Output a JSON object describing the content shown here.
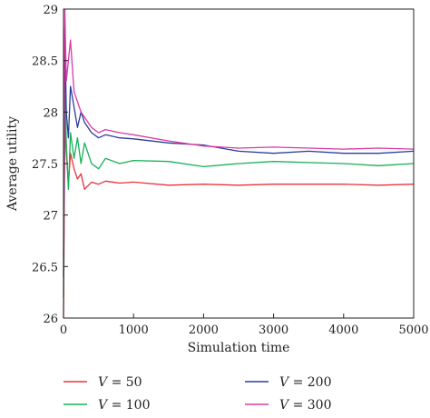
{
  "chart_data": {
    "type": "line",
    "xlabel": "Simulation time",
    "ylabel": "Average utility",
    "xlim": [
      0,
      5000
    ],
    "ylim": [
      26,
      29
    ],
    "xticks": [
      0,
      1000,
      2000,
      3000,
      4000,
      5000
    ],
    "yticks": [
      26,
      26.5,
      27,
      27.5,
      28,
      28.5,
      29
    ],
    "xtick_labels": [
      "0",
      "1000",
      "2000",
      "3000",
      "4000",
      "5000"
    ],
    "ytick_labels": [
      "26",
      "26.5",
      "27",
      "27.5",
      "28",
      "28.5",
      "29"
    ],
    "grid": false,
    "legend_placement": "below",
    "series": [
      {
        "var": "V",
        "eq": " = 50",
        "color": "#e8333b",
        "x": [
          0,
          20,
          40,
          70,
          100,
          150,
          200,
          250,
          300,
          400,
          500,
          600,
          800,
          1000,
          1500,
          2000,
          2500,
          3000,
          3500,
          4000,
          4500,
          5000
        ],
        "y": [
          26.0,
          27.9,
          27.6,
          27.3,
          27.6,
          27.45,
          27.35,
          27.4,
          27.25,
          27.32,
          27.3,
          27.33,
          27.31,
          27.32,
          27.29,
          27.3,
          27.29,
          27.3,
          27.3,
          27.3,
          27.29,
          27.3
        ]
      },
      {
        "var": "V",
        "eq": " = 100",
        "color": "#16b05a",
        "x": [
          0,
          20,
          40,
          70,
          100,
          150,
          200,
          250,
          300,
          400,
          500,
          600,
          800,
          1000,
          1500,
          2000,
          2500,
          3000,
          3500,
          4000,
          4500,
          5000
        ],
        "y": [
          26.2,
          28.3,
          27.7,
          27.25,
          27.8,
          27.55,
          27.75,
          27.5,
          27.7,
          27.5,
          27.45,
          27.55,
          27.5,
          27.53,
          27.52,
          27.47,
          27.5,
          27.52,
          27.51,
          27.5,
          27.48,
          27.5
        ]
      },
      {
        "var": "V",
        "eq": " = 200",
        "color": "#2b3c9c",
        "x": [
          0,
          20,
          40,
          70,
          100,
          150,
          200,
          250,
          300,
          400,
          500,
          600,
          800,
          1000,
          1500,
          2000,
          2500,
          3000,
          3500,
          4000,
          4500,
          5000
        ],
        "y": [
          26.4,
          28.8,
          28.0,
          27.75,
          28.25,
          28.05,
          27.85,
          28.0,
          27.9,
          27.8,
          27.75,
          27.78,
          27.75,
          27.74,
          27.7,
          27.68,
          27.62,
          27.6,
          27.62,
          27.6,
          27.6,
          27.62
        ]
      },
      {
        "var": "V",
        "eq": " = 300",
        "color": "#d93aa8",
        "x": [
          0,
          20,
          40,
          70,
          100,
          150,
          200,
          250,
          300,
          400,
          500,
          600,
          800,
          1000,
          1500,
          2000,
          2500,
          3000,
          3500,
          4000,
          4500,
          5000
        ],
        "y": [
          26.6,
          29.0,
          28.3,
          28.5,
          28.7,
          28.2,
          28.1,
          28.0,
          27.95,
          27.85,
          27.8,
          27.83,
          27.8,
          27.78,
          27.72,
          27.67,
          27.65,
          27.66,
          27.65,
          27.64,
          27.65,
          27.64
        ]
      }
    ]
  }
}
